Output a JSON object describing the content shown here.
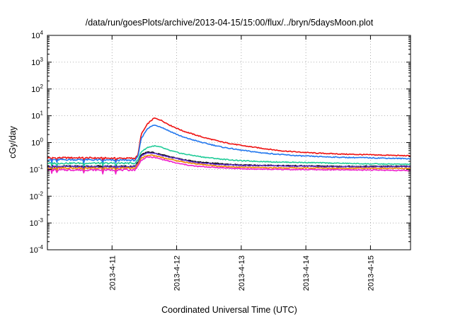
{
  "chart_data": {
    "type": "line",
    "title": "/data/run/goesPlots/archive/2013-04-15/15:00/flux/../bryn/5daysMoon.plot",
    "xlabel": "Coordinated Universal Time (UTC)",
    "ylabel": "cGy/day",
    "yscale": "log",
    "ylim": [
      0.0001,
      10000
    ],
    "xlim": [
      0,
      5.62
    ],
    "grid": true,
    "y_ticks": [
      {
        "value": 0.0001,
        "base": "10",
        "exp": "-4"
      },
      {
        "value": 0.001,
        "base": "10",
        "exp": "-3"
      },
      {
        "value": 0.01,
        "base": "10",
        "exp": "-2"
      },
      {
        "value": 0.1,
        "base": "10",
        "exp": "-1"
      },
      {
        "value": 1,
        "base": "10",
        "exp": "0"
      },
      {
        "value": 10,
        "base": "10",
        "exp": "1"
      },
      {
        "value": 100,
        "base": "10",
        "exp": "2"
      },
      {
        "value": 1000,
        "base": "10",
        "exp": "3"
      },
      {
        "value": 10000,
        "base": "10",
        "exp": "4"
      }
    ],
    "x_ticks": [
      {
        "value": 1.0,
        "label": "2013-4-11"
      },
      {
        "value": 2.0,
        "label": "2013-4-12"
      },
      {
        "value": 3.0,
        "label": "2013-4-13"
      },
      {
        "value": 4.0,
        "label": "2013-4-14"
      },
      {
        "value": 5.0,
        "label": "2013-4-15"
      }
    ],
    "series": [
      {
        "color": "#ee1111",
        "points": [
          [
            0,
            0.27
          ],
          [
            0.5,
            0.27
          ],
          [
            1.0,
            0.26
          ],
          [
            1.35,
            0.26
          ],
          [
            1.4,
            0.33
          ],
          [
            1.45,
            2.0
          ],
          [
            1.55,
            5.0
          ],
          [
            1.65,
            8.2
          ],
          [
            1.75,
            7.0
          ],
          [
            1.9,
            4.4
          ],
          [
            2.1,
            2.7
          ],
          [
            2.4,
            1.6
          ],
          [
            2.7,
            1.05
          ],
          [
            3.0,
            0.78
          ],
          [
            3.3,
            0.62
          ],
          [
            3.6,
            0.5
          ],
          [
            3.9,
            0.44
          ],
          [
            4.2,
            0.4
          ],
          [
            4.6,
            0.37
          ],
          [
            5.0,
            0.35
          ],
          [
            5.62,
            0.32
          ]
        ]
      },
      {
        "color": "#2277ee",
        "points": [
          [
            0,
            0.23
          ],
          [
            0.5,
            0.23
          ],
          [
            1.0,
            0.22
          ],
          [
            1.35,
            0.22
          ],
          [
            1.4,
            0.28
          ],
          [
            1.45,
            1.4
          ],
          [
            1.55,
            3.4
          ],
          [
            1.65,
            4.5
          ],
          [
            1.75,
            3.9
          ],
          [
            1.9,
            2.6
          ],
          [
            2.1,
            1.6
          ],
          [
            2.4,
            1.0
          ],
          [
            2.7,
            0.68
          ],
          [
            3.0,
            0.52
          ],
          [
            3.3,
            0.42
          ],
          [
            3.6,
            0.36
          ],
          [
            3.9,
            0.32
          ],
          [
            4.2,
            0.3
          ],
          [
            4.6,
            0.28
          ],
          [
            5.0,
            0.27
          ],
          [
            5.62,
            0.25
          ]
        ]
      },
      {
        "color": "#22cc99",
        "points": [
          [
            0,
            0.17
          ],
          [
            0.5,
            0.17
          ],
          [
            1.0,
            0.17
          ],
          [
            1.35,
            0.17
          ],
          [
            1.4,
            0.22
          ],
          [
            1.45,
            0.45
          ],
          [
            1.55,
            0.66
          ],
          [
            1.65,
            0.75
          ],
          [
            1.75,
            0.68
          ],
          [
            1.9,
            0.5
          ],
          [
            2.1,
            0.38
          ],
          [
            2.4,
            0.29
          ],
          [
            2.7,
            0.24
          ],
          [
            3.0,
            0.21
          ],
          [
            3.5,
            0.19
          ],
          [
            4.0,
            0.18
          ],
          [
            4.5,
            0.17
          ],
          [
            5.0,
            0.16
          ],
          [
            5.62,
            0.155
          ]
        ]
      },
      {
        "color": "#000000",
        "points": [
          [
            0,
            0.13
          ],
          [
            0.5,
            0.13
          ],
          [
            1.0,
            0.13
          ],
          [
            1.35,
            0.13
          ],
          [
            1.4,
            0.18
          ],
          [
            1.45,
            0.34
          ],
          [
            1.55,
            0.45
          ],
          [
            1.65,
            0.42
          ],
          [
            1.8,
            0.34
          ],
          [
            2.0,
            0.26
          ],
          [
            2.3,
            0.19
          ],
          [
            2.7,
            0.16
          ],
          [
            3.0,
            0.145
          ],
          [
            3.5,
            0.14
          ],
          [
            4.0,
            0.135
          ],
          [
            4.5,
            0.13
          ],
          [
            5.0,
            0.13
          ],
          [
            5.62,
            0.13
          ]
        ]
      },
      {
        "color": "#6633cc",
        "points": [
          [
            0,
            0.125
          ],
          [
            0.5,
            0.125
          ],
          [
            1.0,
            0.125
          ],
          [
            1.35,
            0.125
          ],
          [
            1.4,
            0.17
          ],
          [
            1.45,
            0.32
          ],
          [
            1.55,
            0.42
          ],
          [
            1.65,
            0.4
          ],
          [
            1.8,
            0.32
          ],
          [
            2.0,
            0.25
          ],
          [
            2.3,
            0.18
          ],
          [
            2.7,
            0.15
          ],
          [
            3.0,
            0.14
          ],
          [
            3.5,
            0.135
          ],
          [
            4.0,
            0.13
          ],
          [
            4.5,
            0.125
          ],
          [
            5.0,
            0.125
          ],
          [
            5.62,
            0.125
          ]
        ]
      },
      {
        "color": "#ee8800",
        "points": [
          [
            0,
            0.11
          ],
          [
            0.5,
            0.11
          ],
          [
            1.0,
            0.11
          ],
          [
            1.35,
            0.11
          ],
          [
            1.4,
            0.15
          ],
          [
            1.45,
            0.26
          ],
          [
            1.55,
            0.34
          ],
          [
            1.65,
            0.33
          ],
          [
            1.8,
            0.27
          ],
          [
            2.0,
            0.21
          ],
          [
            2.3,
            0.16
          ],
          [
            2.7,
            0.13
          ],
          [
            3.0,
            0.12
          ],
          [
            3.5,
            0.115
          ],
          [
            4.0,
            0.112
          ],
          [
            4.5,
            0.11
          ],
          [
            5.0,
            0.11
          ],
          [
            5.62,
            0.108
          ]
        ]
      },
      {
        "color": "#ee22cc",
        "points": [
          [
            0,
            0.095
          ],
          [
            0.5,
            0.095
          ],
          [
            1.0,
            0.095
          ],
          [
            1.35,
            0.095
          ],
          [
            1.4,
            0.13
          ],
          [
            1.45,
            0.22
          ],
          [
            1.55,
            0.29
          ],
          [
            1.65,
            0.28
          ],
          [
            1.8,
            0.23
          ],
          [
            2.0,
            0.17
          ],
          [
            2.3,
            0.13
          ],
          [
            2.7,
            0.115
          ],
          [
            3.0,
            0.105
          ],
          [
            3.5,
            0.1
          ],
          [
            4.0,
            0.098
          ],
          [
            4.5,
            0.096
          ],
          [
            5.0,
            0.095
          ],
          [
            5.62,
            0.09
          ]
        ]
      }
    ]
  }
}
